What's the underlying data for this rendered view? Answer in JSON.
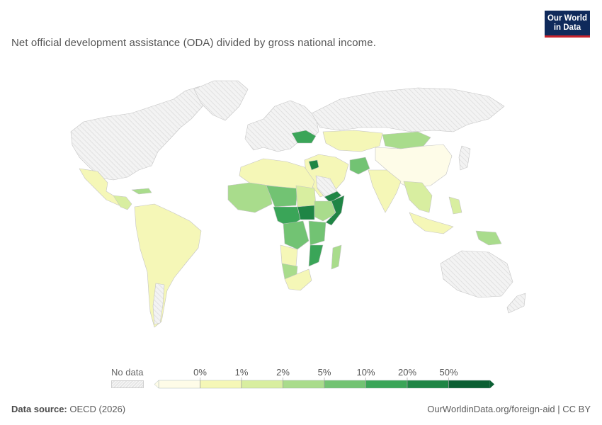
{
  "subtitle": "Net official development assistance (ODA) divided by gross national income.",
  "logo": {
    "line1": "Our World",
    "line2": "in Data"
  },
  "legend": {
    "no_data_label": "No data",
    "bins": [
      "0%",
      "1%",
      "2%",
      "5%",
      "10%",
      "20%",
      "50%"
    ],
    "colors": [
      "#fefce8",
      "#f5f7b7",
      "#d8eea0",
      "#a9dc8c",
      "#72c373",
      "#3aa558",
      "#1f8545",
      "#0b5f33"
    ]
  },
  "footer": {
    "source_label": "Data source:",
    "source_value": "OECD (2026)",
    "link": "OurWorldinData.org/foreign-aid | CC BY"
  },
  "map_colors": {
    "no_data_fill": "#f1f1f1",
    "stroke": "#bdbdbd"
  }
}
